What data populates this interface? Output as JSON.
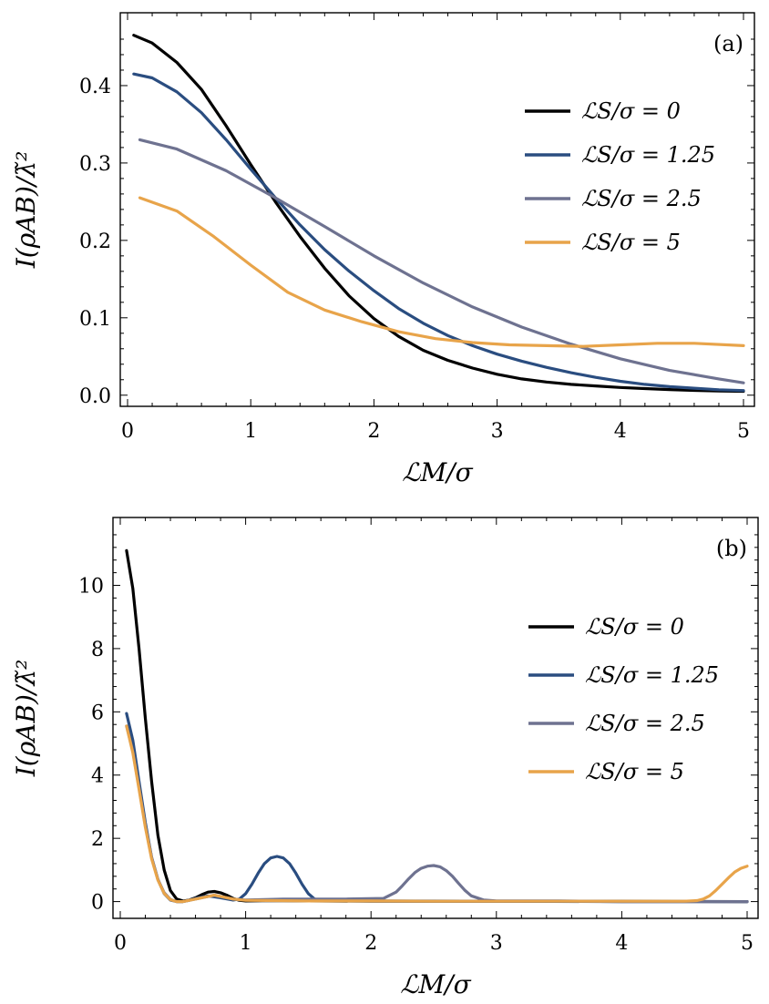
{
  "chart_data": [
    {
      "type": "line",
      "panel_tag": "(a)",
      "xlabel": "ℒM/σ",
      "ylabel": "I(ρAB)/λ̃²",
      "xlim": [
        0,
        5
      ],
      "ylim": [
        -0.005,
        0.48
      ],
      "xticks": [
        0,
        1,
        2,
        3,
        4,
        5
      ],
      "xtick_labels": [
        "0",
        "1",
        "2",
        "3",
        "4",
        "5"
      ],
      "yticks": [
        0.0,
        0.1,
        0.2,
        0.3,
        0.4
      ],
      "ytick_labels": [
        "0.0",
        "0.1",
        "0.2",
        "0.3",
        "0.4"
      ],
      "legend_position": "right",
      "series": [
        {
          "name": "ℒS/σ = 0",
          "color": "#000000",
          "x": [
            0.05,
            0.2,
            0.4,
            0.6,
            0.8,
            1.0,
            1.2,
            1.4,
            1.6,
            1.8,
            2.0,
            2.2,
            2.4,
            2.6,
            2.8,
            3.0,
            3.2,
            3.4,
            3.6,
            3.8,
            4.0,
            4.2,
            4.4,
            4.6,
            4.8,
            5.0
          ],
          "y": [
            0.465,
            0.455,
            0.43,
            0.395,
            0.348,
            0.298,
            0.25,
            0.205,
            0.164,
            0.128,
            0.099,
            0.076,
            0.058,
            0.045,
            0.035,
            0.027,
            0.021,
            0.017,
            0.014,
            0.012,
            0.01,
            0.0085,
            0.0072,
            0.0062,
            0.0055,
            0.005
          ]
        },
        {
          "name": "ℒS/σ = 1.25",
          "color": "#2a4d80",
          "x": [
            0.05,
            0.2,
            0.4,
            0.6,
            0.8,
            1.0,
            1.2,
            1.4,
            1.6,
            1.8,
            2.0,
            2.2,
            2.4,
            2.6,
            2.8,
            3.0,
            3.2,
            3.4,
            3.6,
            3.8,
            4.0,
            4.2,
            4.4,
            4.6,
            4.8,
            5.0
          ],
          "y": [
            0.415,
            0.41,
            0.392,
            0.365,
            0.33,
            0.292,
            0.255,
            0.22,
            0.188,
            0.16,
            0.135,
            0.112,
            0.093,
            0.077,
            0.064,
            0.053,
            0.044,
            0.036,
            0.029,
            0.023,
            0.018,
            0.014,
            0.011,
            0.009,
            0.007,
            0.006
          ]
        },
        {
          "name": "ℒS/σ = 2.5",
          "color": "#6e7290",
          "x": [
            0.1,
            0.4,
            0.8,
            1.2,
            1.6,
            2.0,
            2.4,
            2.8,
            3.2,
            3.6,
            4.0,
            4.4,
            4.8,
            5.0
          ],
          "y": [
            0.33,
            0.318,
            0.29,
            0.255,
            0.218,
            0.18,
            0.145,
            0.114,
            0.088,
            0.066,
            0.047,
            0.032,
            0.021,
            0.016
          ]
        },
        {
          "name": "ℒS/σ = 5",
          "color": "#e8a44a",
          "x": [
            0.1,
            0.4,
            0.7,
            1.0,
            1.3,
            1.6,
            1.9,
            2.2,
            2.5,
            2.8,
            3.1,
            3.4,
            3.7,
            4.0,
            4.3,
            4.6,
            5.0
          ],
          "y": [
            0.255,
            0.238,
            0.205,
            0.168,
            0.133,
            0.11,
            0.095,
            0.082,
            0.073,
            0.068,
            0.065,
            0.064,
            0.063,
            0.065,
            0.067,
            0.067,
            0.064
          ]
        }
      ]
    },
    {
      "type": "line",
      "panel_tag": "(b)",
      "xlabel": "ℒM/σ",
      "ylabel": "I(ρAB)/λ̃²",
      "xlim": [
        0,
        5
      ],
      "ylim": [
        -0.3,
        11.8
      ],
      "xticks": [
        0,
        1,
        2,
        3,
        4,
        5
      ],
      "xtick_labels": [
        "0",
        "1",
        "2",
        "3",
        "4",
        "5"
      ],
      "yticks": [
        0,
        2,
        4,
        6,
        8,
        10
      ],
      "ytick_labels": [
        "0",
        "2",
        "4",
        "6",
        "8",
        "10"
      ],
      "legend_position": "right",
      "series": [
        {
          "name": "ℒS/σ = 0",
          "color": "#000000",
          "x": [
            0.05,
            0.1,
            0.15,
            0.2,
            0.25,
            0.3,
            0.35,
            0.4,
            0.45,
            0.5,
            0.55,
            0.6,
            0.65,
            0.7,
            0.75,
            0.8,
            0.85,
            0.9,
            0.95,
            1.0,
            1.2,
            1.5,
            2.0,
            3.0,
            4.0,
            5.0
          ],
          "y": [
            11.1,
            9.9,
            8.0,
            5.8,
            3.8,
            2.1,
            1.0,
            0.35,
            0.08,
            0.02,
            0.05,
            0.12,
            0.22,
            0.3,
            0.32,
            0.28,
            0.2,
            0.1,
            0.04,
            0.02,
            0.03,
            0.02,
            0.01,
            0.01,
            0.01,
            0.0
          ]
        },
        {
          "name": "ℒS/σ = 1.25",
          "color": "#2a4d80",
          "x": [
            0.05,
            0.1,
            0.15,
            0.2,
            0.25,
            0.3,
            0.35,
            0.4,
            0.45,
            0.5,
            0.55,
            0.6,
            0.7,
            0.8,
            0.9,
            0.95,
            1.0,
            1.05,
            1.1,
            1.15,
            1.2,
            1.25,
            1.3,
            1.35,
            1.4,
            1.45,
            1.5,
            1.55,
            1.6,
            1.7,
            2.0,
            3.0,
            4.0,
            5.0
          ],
          "y": [
            5.95,
            5.1,
            3.8,
            2.5,
            1.4,
            0.7,
            0.25,
            0.05,
            0.0,
            0.0,
            0.04,
            0.1,
            0.18,
            0.12,
            0.05,
            0.08,
            0.25,
            0.55,
            0.9,
            1.2,
            1.38,
            1.43,
            1.38,
            1.2,
            0.9,
            0.55,
            0.25,
            0.08,
            0.03,
            0.02,
            0.02,
            0.01,
            0.0,
            0.0
          ]
        },
        {
          "name": "ℒS/σ = 2.5",
          "color": "#6e7290",
          "x": [
            0.05,
            0.1,
            0.15,
            0.2,
            0.25,
            0.3,
            0.35,
            0.4,
            0.45,
            0.5,
            0.6,
            0.75,
            0.9,
            1.0,
            1.3,
            1.8,
            2.1,
            2.2,
            2.25,
            2.3,
            2.35,
            2.4,
            2.45,
            2.5,
            2.55,
            2.6,
            2.65,
            2.7,
            2.75,
            2.8,
            2.9,
            3.0,
            3.5,
            4.0,
            4.5,
            5.0
          ],
          "y": [
            5.55,
            4.75,
            3.6,
            2.4,
            1.4,
            0.7,
            0.28,
            0.07,
            0.0,
            0.0,
            0.08,
            0.2,
            0.08,
            0.05,
            0.08,
            0.08,
            0.1,
            0.3,
            0.5,
            0.72,
            0.92,
            1.05,
            1.12,
            1.14,
            1.1,
            0.98,
            0.8,
            0.57,
            0.35,
            0.18,
            0.05,
            0.02,
            0.02,
            0.0,
            0.0,
            0.0
          ]
        },
        {
          "name": "ℒS/σ = 5",
          "color": "#e8a44a",
          "x": [
            0.05,
            0.1,
            0.15,
            0.2,
            0.25,
            0.3,
            0.35,
            0.4,
            0.45,
            0.5,
            0.6,
            0.75,
            0.9,
            1.0,
            1.5,
            2.0,
            2.5,
            3.0,
            3.5,
            4.0,
            4.5,
            4.6,
            4.65,
            4.7,
            4.75,
            4.8,
            4.85,
            4.9,
            4.95,
            5.0
          ],
          "y": [
            5.55,
            4.7,
            3.55,
            2.35,
            1.35,
            0.68,
            0.26,
            0.06,
            0.0,
            0.0,
            0.08,
            0.2,
            0.08,
            0.04,
            0.02,
            0.02,
            0.01,
            0.01,
            0.01,
            0.01,
            0.01,
            0.03,
            0.08,
            0.18,
            0.35,
            0.55,
            0.75,
            0.93,
            1.05,
            1.12
          ]
        }
      ]
    }
  ]
}
